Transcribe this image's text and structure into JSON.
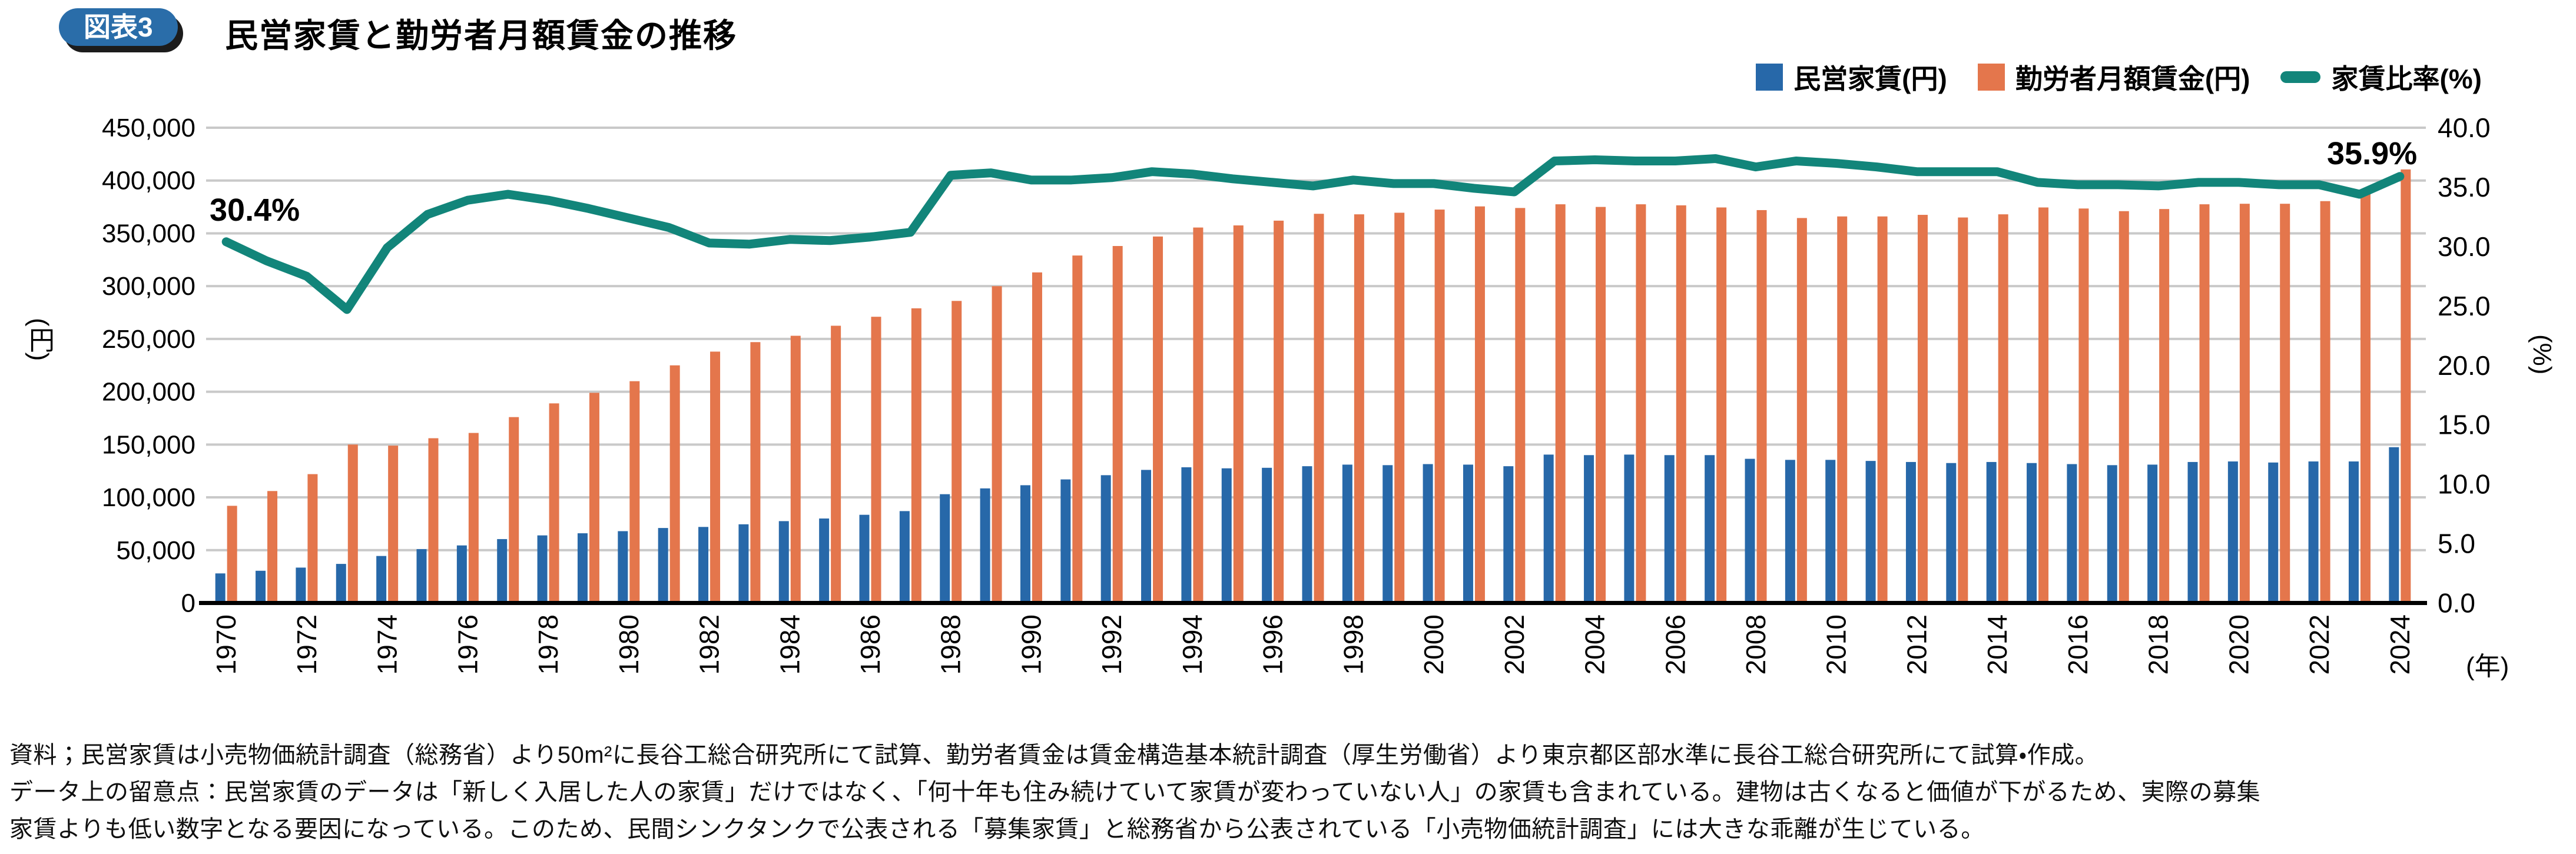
{
  "header": {
    "badge": "図表3",
    "title": "民営家賃と勤労者月額賃金の推移"
  },
  "legend": [
    {
      "label": "民営家賃(円)",
      "color": "#2768A9",
      "type": "square"
    },
    {
      "label": "勤労者月額賃金(円)",
      "color": "#E4764C",
      "type": "square"
    },
    {
      "label": "家賃比率(%)",
      "color": "#12857A",
      "type": "line"
    }
  ],
  "colors": {
    "rent_bar": "#2768A9",
    "wage_bar": "#E4764C",
    "ratio_line": "#12857A",
    "gridline": "#C9C9C9",
    "axis": "#000000",
    "badge_bg": "#2A6DA9",
    "badge_shadow": "#1c1c1c"
  },
  "chart_data": {
    "type": "bar",
    "subtype": "grouped-bars-with-secondary-axis-line",
    "title": "民営家賃と勤労者月額賃金の推移",
    "xlabel": "(年)",
    "ylabel": "(円)",
    "y2label": "(%)",
    "ylim": [
      0,
      450000
    ],
    "ytick_step": 50000,
    "y2lim": [
      0,
      40
    ],
    "y2tick_step": 5,
    "grid": true,
    "legend_position": "top-right",
    "x_tick_every": 2,
    "categories": [
      1970,
      1971,
      1972,
      1973,
      1974,
      1975,
      1976,
      1977,
      1978,
      1979,
      1980,
      1981,
      1982,
      1983,
      1984,
      1985,
      1986,
      1987,
      1988,
      1989,
      1990,
      1991,
      1992,
      1993,
      1994,
      1995,
      1996,
      1997,
      1998,
      1999,
      2000,
      2001,
      2002,
      2003,
      2004,
      2005,
      2006,
      2007,
      2008,
      2009,
      2010,
      2011,
      2012,
      2013,
      2014,
      2015,
      2016,
      2017,
      2018,
      2019,
      2020,
      2021,
      2022,
      2023,
      2024
    ],
    "series": [
      {
        "name": "民営家賃(円)",
        "axis": "left",
        "render": "bar",
        "values": [
          28000,
          30500,
          33500,
          37000,
          44500,
          51000,
          54500,
          60500,
          64000,
          66000,
          68000,
          71000,
          72000,
          74500,
          77500,
          80000,
          83500,
          87000,
          103000,
          108500,
          111500,
          117000,
          121000,
          126000,
          128500,
          127500,
          128000,
          129500,
          131000,
          130500,
          131500,
          131000,
          129500,
          140500,
          140000,
          140500,
          140000,
          140000,
          136500,
          135500,
          135500,
          134500,
          133500,
          132500,
          133500,
          132500,
          131500,
          130500,
          131000,
          133500,
          134000,
          133000,
          134000,
          134000,
          147500
        ]
      },
      {
        "name": "勤労者月額賃金(円)",
        "axis": "left",
        "render": "bar",
        "values": [
          92000,
          106000,
          122000,
          150000,
          149000,
          156000,
          161000,
          176000,
          189000,
          199000,
          210000,
          225000,
          238000,
          247000,
          253000,
          262500,
          271000,
          279000,
          286000,
          300000,
          313000,
          329000,
          338000,
          347000,
          355500,
          357500,
          362000,
          368500,
          368000,
          369500,
          372500,
          375500,
          374000,
          377500,
          375000,
          377500,
          376500,
          374500,
          372000,
          364500,
          366000,
          366000,
          367500,
          365000,
          368000,
          374500,
          373500,
          371000,
          373000,
          377500,
          378000,
          378000,
          380500,
          389500,
          410500
        ]
      },
      {
        "name": "家賃比率(%)",
        "axis": "right",
        "render": "line",
        "values": [
          30.4,
          28.8,
          27.5,
          24.7,
          29.9,
          32.7,
          33.9,
          34.4,
          33.9,
          33.2,
          32.4,
          31.6,
          30.3,
          30.2,
          30.6,
          30.5,
          30.8,
          31.2,
          36.0,
          36.2,
          35.6,
          35.6,
          35.8,
          36.3,
          36.1,
          35.7,
          35.4,
          35.1,
          35.6,
          35.3,
          35.3,
          34.9,
          34.6,
          37.2,
          37.3,
          37.2,
          37.2,
          37.4,
          36.7,
          37.2,
          37.0,
          36.7,
          36.3,
          36.3,
          36.3,
          35.4,
          35.2,
          35.2,
          35.1,
          35.4,
          35.4,
          35.2,
          35.2,
          34.4,
          35.9
        ]
      }
    ],
    "annotations": [
      {
        "text": "30.4%",
        "year": 1970,
        "position": "start"
      },
      {
        "text": "35.9%",
        "year": 2024,
        "position": "end"
      }
    ]
  },
  "footer": {
    "lines": [
      "資料；民営家賃は小売物価統計調査（総務省）より50m²に長谷工総合研究所にて試算、勤労者賃金は賃金構造基本統計調査（厚生労働省）より東京都区部水準に長谷工総合研究所にて試算・作成。",
      "データ上の留意点：民営家賃のデータは「新しく入居した人の家賃」だけではなく、「何十年も住み続けていて家賃が変わっていない人」の家賃も含まれている。建物は古くなると価値が下がるため、実際の募集",
      "家賃よりも低い数字となる要因になっている。このため、民間シンクタンクで公表される「募集家賃」と総務省から公表されている「小売物価統計調査」には大きな乖離が生じている。"
    ]
  }
}
